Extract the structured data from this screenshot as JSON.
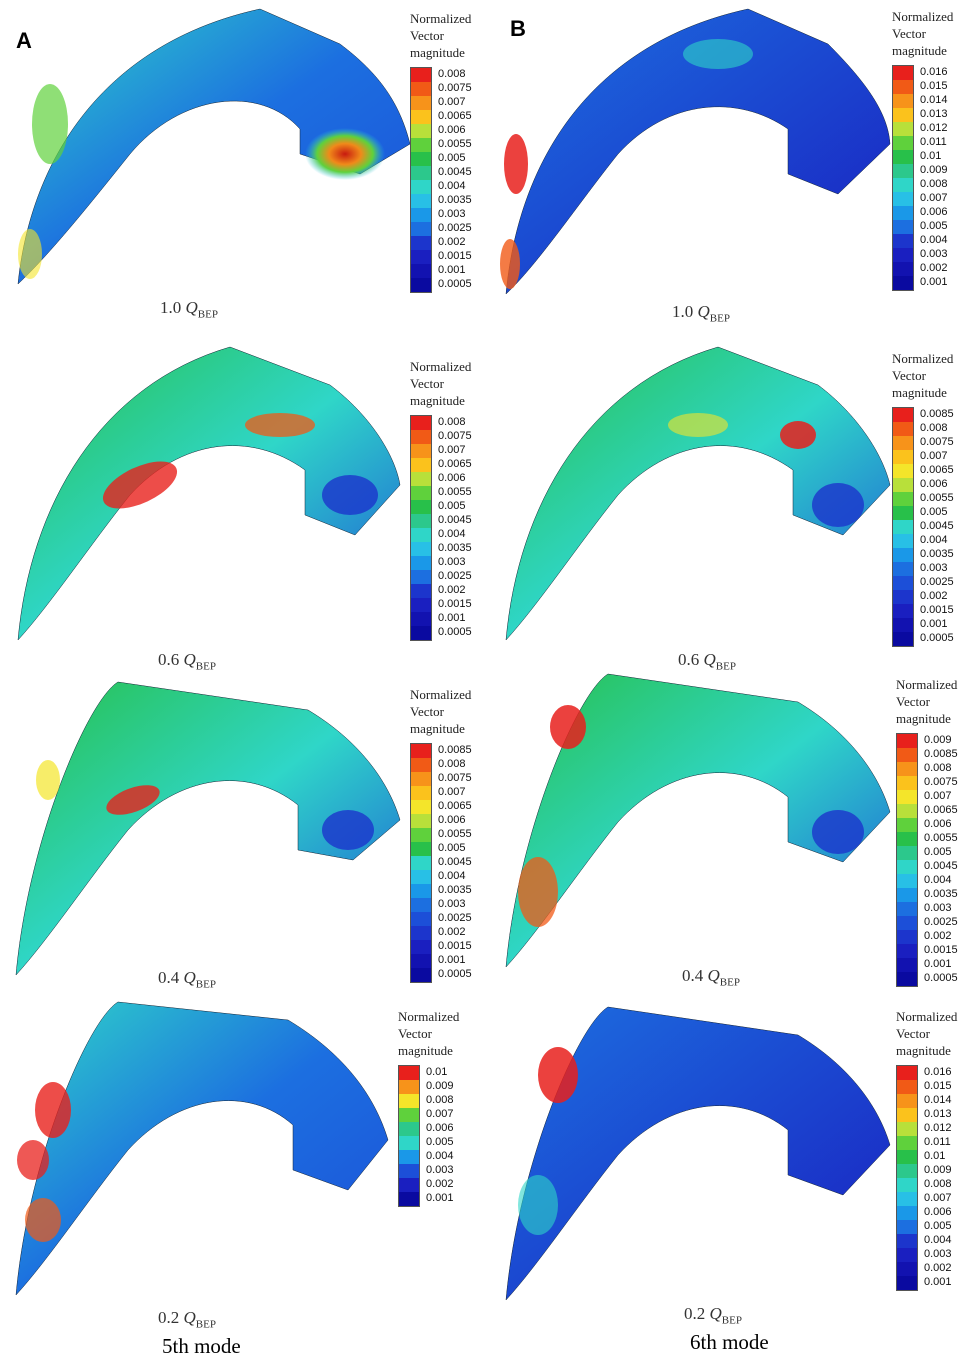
{
  "panel_labels": [
    "A",
    "B"
  ],
  "legend_title": "Normalized\nVector\nmagnitude",
  "legends": {
    "a1": [
      "0.008",
      "0.0075",
      "0.007",
      "0.0065",
      "0.006",
      "0.0055",
      "0.005",
      "0.0045",
      "0.004",
      "0.0035",
      "0.003",
      "0.0025",
      "0.002",
      "0.0015",
      "0.001",
      "0.0005"
    ],
    "b1": [
      "0.016",
      "0.015",
      "0.014",
      "0.013",
      "0.012",
      "0.011",
      "0.01",
      "0.009",
      "0.008",
      "0.007",
      "0.006",
      "0.005",
      "0.004",
      "0.003",
      "0.002",
      "0.001"
    ],
    "a2": [
      "0.008",
      "0.0075",
      "0.007",
      "0.0065",
      "0.006",
      "0.0055",
      "0.005",
      "0.0045",
      "0.004",
      "0.0035",
      "0.003",
      "0.0025",
      "0.002",
      "0.0015",
      "0.001",
      "0.0005"
    ],
    "b2": [
      "0.0085",
      "0.008",
      "0.0075",
      "0.007",
      "0.0065",
      "0.006",
      "0.0055",
      "0.005",
      "0.0045",
      "0.004",
      "0.0035",
      "0.003",
      "0.0025",
      "0.002",
      "0.0015",
      "0.001",
      "0.0005"
    ],
    "a3": [
      "0.0085",
      "0.008",
      "0.0075",
      "0.007",
      "0.0065",
      "0.006",
      "0.0055",
      "0.005",
      "0.0045",
      "0.004",
      "0.0035",
      "0.003",
      "0.0025",
      "0.002",
      "0.0015",
      "0.001",
      "0.0005"
    ],
    "b3": [
      "0.009",
      "0.0085",
      "0.008",
      "0.0075",
      "0.007",
      "0.0065",
      "0.006",
      "0.0055",
      "0.005",
      "0.0045",
      "0.004",
      "0.0035",
      "0.003",
      "0.0025",
      "0.002",
      "0.0015",
      "0.001",
      "0.0005"
    ],
    "a4": [
      "0.01",
      "0.009",
      "0.008",
      "0.007",
      "0.006",
      "0.005",
      "0.004",
      "0.003",
      "0.002",
      "0.001"
    ],
    "b4": [
      "0.016",
      "0.015",
      "0.014",
      "0.013",
      "0.012",
      "0.011",
      "0.01",
      "0.009",
      "0.008",
      "0.007",
      "0.006",
      "0.005",
      "0.004",
      "0.003",
      "0.002",
      "0.001"
    ]
  },
  "captions": {
    "c1": {
      "factor": "1.0",
      "q": "Q",
      "sub": "BEP"
    },
    "c2": {
      "factor": "0.6",
      "q": "Q",
      "sub": "BEP"
    },
    "c3": {
      "factor": "0.4",
      "q": "Q",
      "sub": "BEP"
    },
    "c4": {
      "factor": "0.2",
      "q": "Q",
      "sub": "BEP"
    }
  },
  "mode_labels": {
    "a": "5th mode",
    "b": "6th mode"
  },
  "colorscale": [
    "#e8201c",
    "#f15a16",
    "#f7931a",
    "#fbc21c",
    "#f4e52a",
    "#b8e03a",
    "#5fd13c",
    "#28c04a",
    "#2cc88c",
    "#2fd6c8",
    "#28c0e6",
    "#1a98e8",
    "#1c6fe0",
    "#1c4fd8",
    "#1c35cc",
    "#1a1fc0",
    "#1212b0",
    "#0a0aa0"
  ]
}
